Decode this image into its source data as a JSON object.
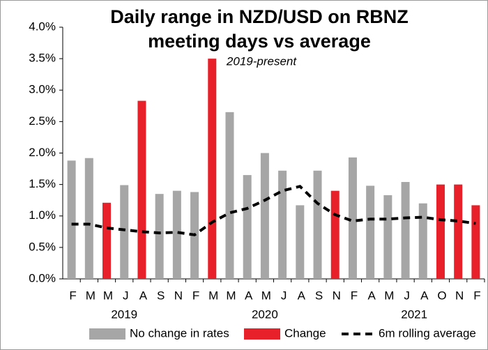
{
  "chart_data": {
    "type": "bar",
    "title": [
      "Daily range in NZD/USD on RBNZ",
      "meeting days vs average"
    ],
    "subtitle": "2019-present",
    "categories": [
      "F",
      "M",
      "M",
      "J",
      "A",
      "S",
      "N",
      "F",
      "M",
      "M",
      "A",
      "M",
      "J",
      "A",
      "S",
      "N",
      "F",
      "A",
      "M",
      "J",
      "A",
      "O",
      "N",
      "F"
    ],
    "groups": [
      {
        "label": "2019",
        "from": 0,
        "to": 6
      },
      {
        "label": "2020",
        "from": 7,
        "to": 15
      },
      {
        "label": "2021",
        "from": 16,
        "to": 23
      }
    ],
    "series": [
      {
        "name": "No change in rates",
        "type": "bar",
        "color": "#a6a6a6",
        "values": [
          1.88,
          1.92,
          null,
          1.49,
          null,
          1.35,
          1.4,
          1.38,
          null,
          2.65,
          1.65,
          2.0,
          1.72,
          1.17,
          1.72,
          null,
          1.93,
          1.48,
          1.33,
          1.54,
          1.2,
          null,
          null,
          null
        ]
      },
      {
        "name": "Change",
        "type": "bar",
        "color": "#e8202a",
        "values": [
          null,
          null,
          1.21,
          null,
          2.83,
          null,
          null,
          null,
          3.5,
          null,
          null,
          null,
          null,
          null,
          null,
          1.4,
          null,
          null,
          null,
          null,
          null,
          1.5,
          1.5,
          1.17
        ]
      },
      {
        "name": "6m rolling average",
        "type": "line",
        "color": "#000000",
        "dashed": true,
        "values": [
          0.87,
          0.87,
          0.81,
          0.78,
          0.75,
          0.73,
          0.74,
          0.7,
          0.9,
          1.05,
          1.12,
          1.25,
          1.4,
          1.47,
          1.2,
          1.02,
          0.92,
          0.95,
          0.95,
          0.97,
          0.98,
          0.94,
          0.92,
          0.88
        ]
      }
    ],
    "ylim": [
      0,
      4
    ],
    "yticks": [
      {
        "value": 0,
        "label": "0.0%"
      },
      {
        "value": 0.5,
        "label": "0.5%"
      },
      {
        "value": 1,
        "label": "1.0%"
      },
      {
        "value": 1.5,
        "label": "1.5%"
      },
      {
        "value": 2,
        "label": "2.0%"
      },
      {
        "value": 2.5,
        "label": "2.5%"
      },
      {
        "value": 3,
        "label": "3.0%"
      },
      {
        "value": 3.5,
        "label": "3.5%"
      },
      {
        "value": 4,
        "label": "4.0%"
      }
    ],
    "grid": false,
    "legend": "bottom"
  }
}
